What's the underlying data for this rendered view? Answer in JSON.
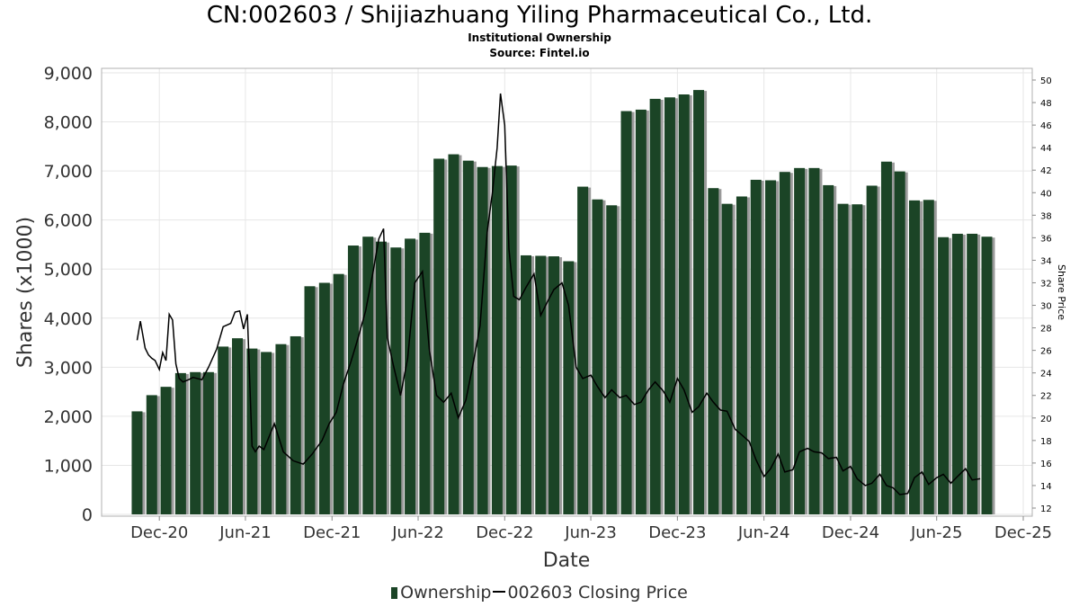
{
  "title": "CN:002603 / Shijiazhuang Yiling Pharmaceutical Co., Ltd.",
  "subtitle1": "Institutional Ownership",
  "subtitle2": "Source: Fintel.io",
  "legend": {
    "ownership": "Ownership",
    "price": "002603 Closing Price"
  },
  "colors": {
    "bar": "#1b4426",
    "bar_shadow": "#9a9a9a",
    "price_line": "#000000",
    "grid": "#e6e6e6"
  },
  "chart_data": {
    "type": "bar",
    "xlabel": "Date",
    "ylabel": "Shares (x1000)",
    "y2label": "Share Price",
    "ylim": [
      0,
      9000
    ],
    "y2lim": [
      12,
      50
    ],
    "yticks": [
      "0",
      "1,000",
      "2,000",
      "3,000",
      "4,000",
      "5,000",
      "6,000",
      "7,000",
      "8,000",
      "9,000"
    ],
    "y2ticks": [
      "12",
      "14",
      "16",
      "18",
      "20",
      "22",
      "24",
      "26",
      "28",
      "30",
      "32",
      "34",
      "36",
      "38",
      "40",
      "42",
      "44",
      "46",
      "48",
      "50"
    ],
    "xlim": [
      "2020-08-01",
      "2025-12-20"
    ],
    "xticks": [
      {
        "label": "Dec-20",
        "date": "2020-12-01"
      },
      {
        "label": "Jun-21",
        "date": "2021-06-01"
      },
      {
        "label": "Dec-21",
        "date": "2021-12-01"
      },
      {
        "label": "Jun-22",
        "date": "2022-06-01"
      },
      {
        "label": "Dec-22",
        "date": "2022-12-01"
      },
      {
        "label": "Jun-23",
        "date": "2023-06-01"
      },
      {
        "label": "Dec-23",
        "date": "2023-12-01"
      },
      {
        "label": "Jun-24",
        "date": "2024-06-01"
      },
      {
        "label": "Dec-24",
        "date": "2024-12-01"
      },
      {
        "label": "Jun-25",
        "date": "2025-06-01"
      },
      {
        "label": "Dec-25",
        "date": "2025-12-01"
      }
    ],
    "grid": true,
    "legend_position": "bottom",
    "series": [
      {
        "name": "Ownership",
        "type": "bar",
        "x": [
          "2020-10-15",
          "2020-11-15",
          "2020-12-15",
          "2021-01-15",
          "2021-02-15",
          "2021-03-15",
          "2021-04-15",
          "2021-05-15",
          "2021-06-15",
          "2021-07-15",
          "2021-08-15",
          "2021-09-15",
          "2021-10-15",
          "2021-11-15",
          "2021-12-15",
          "2022-01-15",
          "2022-02-15",
          "2022-03-15",
          "2022-04-15",
          "2022-05-15",
          "2022-06-15",
          "2022-07-15",
          "2022-08-15",
          "2022-09-15",
          "2022-10-15",
          "2022-11-15",
          "2022-12-15",
          "2023-01-15",
          "2023-02-15",
          "2023-03-15",
          "2023-04-15",
          "2023-05-15",
          "2023-06-15",
          "2023-07-15",
          "2023-08-15",
          "2023-09-15",
          "2023-10-15",
          "2023-11-15",
          "2023-12-15",
          "2024-01-15",
          "2024-02-15",
          "2024-03-15",
          "2024-04-15",
          "2024-05-15",
          "2024-06-15",
          "2024-07-15",
          "2024-08-15",
          "2024-09-15",
          "2024-10-15",
          "2024-11-15",
          "2024-12-15",
          "2025-01-15",
          "2025-02-15",
          "2025-03-15",
          "2025-04-15",
          "2025-05-15",
          "2025-06-15",
          "2025-07-15",
          "2025-08-15",
          "2025-09-15"
        ],
        "values": [
          2100,
          2430,
          2600,
          2880,
          2900,
          2900,
          3420,
          3590,
          3380,
          3310,
          3470,
          3630,
          4650,
          4720,
          4900,
          5480,
          5660,
          5560,
          5440,
          5620,
          5740,
          7250,
          7340,
          7210,
          7080,
          7100,
          7110,
          5280,
          5270,
          5260,
          5160,
          6680,
          6420,
          6300,
          8220,
          8250,
          8470,
          8500,
          8560,
          8650,
          6650,
          6330,
          6480,
          6820,
          6810,
          6980,
          7060,
          7060,
          6710,
          6330,
          6320,
          6700,
          7190,
          6990,
          6400,
          6410,
          5650,
          5720,
          5720,
          5660
        ]
      },
      {
        "name": "002603 Closing Price",
        "type": "line",
        "x": [
          "2020-10-15",
          "2020-10-22",
          "2020-11-01",
          "2020-11-08",
          "2020-11-15",
          "2020-11-22",
          "2020-12-01",
          "2020-12-08",
          "2020-12-15",
          "2020-12-22",
          "2020-12-29",
          "2021-01-05",
          "2021-01-12",
          "2021-01-20",
          "2021-02-01",
          "2021-02-10",
          "2021-03-01",
          "2021-03-15",
          "2021-04-01",
          "2021-04-15",
          "2021-05-01",
          "2021-05-10",
          "2021-05-20",
          "2021-05-28",
          "2021-06-05",
          "2021-06-15",
          "2021-06-22",
          "2021-06-30",
          "2021-07-10",
          "2021-08-01",
          "2021-08-20",
          "2021-09-10",
          "2021-10-01",
          "2021-10-20",
          "2021-11-10",
          "2021-11-25",
          "2021-12-10",
          "2021-12-25",
          "2022-01-10",
          "2022-01-25",
          "2022-02-10",
          "2022-02-25",
          "2022-03-10",
          "2022-03-20",
          "2022-03-28",
          "2022-04-10",
          "2022-04-25",
          "2022-05-10",
          "2022-05-25",
          "2022-06-10",
          "2022-06-25",
          "2022-07-10",
          "2022-07-25",
          "2022-08-10",
          "2022-08-25",
          "2022-09-10",
          "2022-09-25",
          "2022-10-10",
          "2022-10-25",
          "2022-11-05",
          "2022-11-15",
          "2022-11-22",
          "2022-12-01",
          "2022-12-10",
          "2022-12-20",
          "2023-01-01",
          "2023-01-15",
          "2023-02-01",
          "2023-02-15",
          "2023-03-01",
          "2023-03-15",
          "2023-04-01",
          "2023-04-15",
          "2023-05-01",
          "2023-05-15",
          "2023-06-01",
          "2023-06-15",
          "2023-07-01",
          "2023-07-15",
          "2023-08-01",
          "2023-08-15",
          "2023-09-01",
          "2023-09-15",
          "2023-10-01",
          "2023-10-15",
          "2023-11-01",
          "2023-11-15",
          "2023-12-01",
          "2023-12-15",
          "2024-01-01",
          "2024-01-15",
          "2024-02-01",
          "2024-02-15",
          "2024-03-01",
          "2024-03-15",
          "2024-04-01",
          "2024-04-15",
          "2024-05-01",
          "2024-05-15",
          "2024-06-01",
          "2024-06-15",
          "2024-07-01",
          "2024-07-15",
          "2024-08-01",
          "2024-08-15",
          "2024-09-01",
          "2024-09-15",
          "2024-10-01",
          "2024-10-15",
          "2024-11-01",
          "2024-11-15",
          "2024-12-01",
          "2024-12-15",
          "2025-01-01",
          "2025-01-15",
          "2025-02-01",
          "2025-02-15",
          "2025-03-01",
          "2025-03-15",
          "2025-04-01",
          "2025-04-15",
          "2025-05-01",
          "2025-05-15",
          "2025-06-01",
          "2025-06-15",
          "2025-07-01",
          "2025-07-15",
          "2025-08-01",
          "2025-08-15",
          "2025-09-01"
        ],
        "values": [
          26.9,
          28.6,
          26.2,
          25.6,
          25.3,
          25.1,
          24.3,
          25.8,
          25.1,
          29.2,
          28.7,
          24.8,
          23.5,
          23.2,
          23.4,
          23.6,
          23.4,
          24.5,
          26.1,
          28.1,
          28.4,
          29.4,
          29.5,
          27.9,
          29.2,
          17.5,
          17.0,
          17.5,
          17.2,
          19.5,
          17.0,
          16.2,
          15.9,
          16.8,
          18.0,
          19.5,
          20.5,
          23.0,
          25.0,
          27.1,
          29.5,
          32.8,
          35.9,
          36.8,
          27.1,
          24.6,
          22.0,
          25.3,
          32.0,
          33.0,
          26.0,
          22.0,
          21.4,
          22.2,
          20.0,
          21.6,
          24.8,
          28.2,
          36.5,
          40.0,
          44.0,
          48.8,
          46.0,
          35.0,
          30.8,
          30.5,
          31.6,
          32.8,
          29.1,
          30.3,
          31.4,
          32.0,
          30.0,
          24.5,
          23.5,
          23.8,
          22.8,
          21.8,
          22.5,
          21.8,
          22.0,
          21.2,
          21.4,
          22.5,
          23.2,
          22.4,
          21.4,
          23.5,
          22.5,
          20.5,
          21.0,
          22.2,
          21.4,
          20.7,
          20.6,
          19.0,
          18.5,
          17.9,
          16.3,
          14.8,
          15.5,
          16.8,
          15.2,
          15.4,
          17.0,
          17.3,
          17.0,
          16.9,
          16.4,
          16.5,
          15.3,
          15.7,
          14.6,
          14.0,
          14.2,
          15.0,
          14.0,
          13.8,
          13.2,
          13.3,
          14.7,
          15.2,
          14.1,
          14.7,
          15.0,
          14.2,
          14.8,
          15.5,
          14.5,
          14.6
        ]
      }
    ]
  }
}
